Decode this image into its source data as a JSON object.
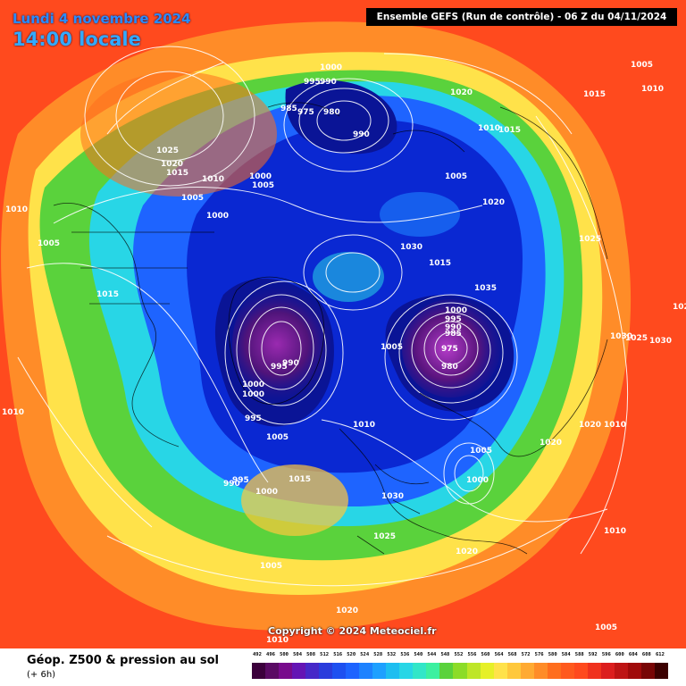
{
  "header": {
    "date": "Lundi 4 novembre 2024",
    "local_time": "14:00 locale",
    "run_info": "Ensemble GEFS  (Run de contrôle)  -  06 Z du 04/11/2024"
  },
  "map": {
    "projection": "polar-stereographic-north",
    "copyright": "Copyright © 2024 Meteociel.fr",
    "pressure_labels": [
      "1000",
      "995",
      "990",
      "985",
      "975",
      "980",
      "990",
      "1020",
      "1015",
      "1005",
      "1010",
      "1010",
      "1015",
      "1025",
      "1020",
      "1015",
      "1010",
      "1000",
      "1005",
      "1005",
      "1000",
      "1010",
      "1005",
      "1015",
      "1005",
      "1020",
      "1025",
      "1030",
      "1015",
      "1035",
      "1030",
      "1025",
      "1030",
      "1020",
      "1000",
      "995",
      "990",
      "985",
      "975",
      "980",
      "1005",
      "995",
      "990",
      "1000",
      "1000",
      "995",
      "1005",
      "1010",
      "1010",
      "1020",
      "1020",
      "1010",
      "1005",
      "990",
      "995",
      "1000",
      "1015",
      "1030",
      "1025",
      "1020",
      "1005",
      "1000",
      "1010",
      "1005",
      "1020",
      "1015",
      "1010",
      "1005",
      "1015"
    ],
    "colors": {
      "ocean": "#ff4a1e",
      "belt_orange": "#ff8c28",
      "belt_yellow": "#ffe24a",
      "belt_green": "#5ad23c",
      "belt_cyan": "#28d6e6",
      "belt_blue": "#1e64ff",
      "core_blue": "#0a28d2",
      "deep_blue": "#0a1496",
      "purple": "#781e8c",
      "isobar": "#ffffff",
      "coast": "#000000"
    }
  },
  "footer": {
    "title": "Géop. Z500 & pression au sol",
    "subtitle": "(+ 6h)",
    "scale_values": [
      "492",
      "496",
      "500",
      "504",
      "508",
      "512",
      "516",
      "520",
      "524",
      "528",
      "532",
      "536",
      "540",
      "544",
      "548",
      "552",
      "556",
      "560",
      "564",
      "568",
      "572",
      "576",
      "580",
      "584",
      "588",
      "592",
      "596",
      "600",
      "604",
      "608",
      "612"
    ],
    "scale_colors": [
      "#3c003c",
      "#5a0a64",
      "#780a8c",
      "#6414b4",
      "#4628c8",
      "#2a3cdc",
      "#1e50f0",
      "#1e64ff",
      "#1e82ff",
      "#1ea0ff",
      "#1ebef0",
      "#28d6e6",
      "#32e6c8",
      "#3cf0a0",
      "#5ad23c",
      "#8cdc28",
      "#bee628",
      "#e6f028",
      "#ffe24a",
      "#ffc83c",
      "#ffaa32",
      "#ff8c28",
      "#ff6e1e",
      "#ff5a1e",
      "#ff4a1e",
      "#f0321e",
      "#dc1e1e",
      "#be1414",
      "#a00a0a",
      "#780505",
      "#3c0000"
    ]
  }
}
